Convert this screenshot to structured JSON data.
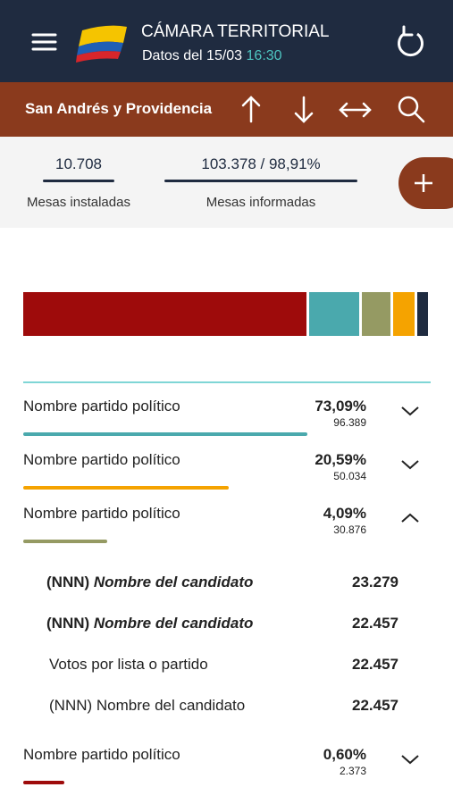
{
  "header": {
    "title": "CÁMARA TERRITORIAL",
    "date_label": "Datos del 15/03",
    "time": "16:30"
  },
  "location": "San Andrés y Providencia",
  "stats": [
    {
      "value": "10.708",
      "label": "Mesas instaladas"
    },
    {
      "value": "103.378 / 98,91%",
      "label": "Mesas informadas"
    }
  ],
  "parties": [
    {
      "name": "Nombre partido político",
      "percent": "73,09%",
      "votes": "96.389"
    },
    {
      "name": "Nombre partido político",
      "percent": "20,59%",
      "votes": "50.034"
    },
    {
      "name": "Nombre partido político",
      "percent": "4,09%",
      "votes": "30.876"
    },
    {
      "name": "Nombre partido político",
      "percent": "0,60%",
      "votes": "2.373"
    }
  ],
  "candidates": [
    {
      "prefix": "(NNN)",
      "name": "Nombre del candidato",
      "votes": "23.279"
    },
    {
      "prefix": "(NNN)",
      "name": "Nombre del candidato",
      "votes": "22.457"
    },
    {
      "name": "Votos por lista o partido",
      "votes": "22.457"
    },
    {
      "prefix": "(NNN)",
      "name": "Nombre del candidato",
      "votes": "22.457"
    }
  ]
}
